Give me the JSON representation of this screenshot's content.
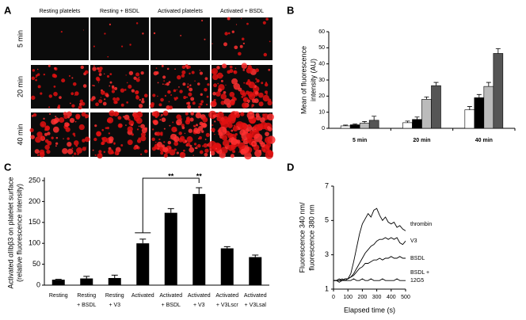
{
  "figure": {
    "panel_letters": [
      "A",
      "B",
      "C",
      "D"
    ],
    "image_grid": {
      "columns": [
        "Resting platelets",
        "Resting + BSDL",
        "Activated platelets",
        "Activated + BSDL"
      ],
      "rows": [
        "5 min",
        "20 min",
        "40 min"
      ]
    }
  },
  "chart_data": [
    {
      "type": "grouped-bar",
      "ylabel": [
        "Mean of fluorescence",
        "intensity (AU)"
      ],
      "categories": [
        "5 min",
        "20 min",
        "40 min"
      ],
      "series": [
        {
          "color": "#ffffff",
          "values": [
            1.5,
            3.5,
            11.5
          ],
          "errors": [
            0.5,
            1,
            2
          ]
        },
        {
          "color": "#000000",
          "values": [
            2.2,
            5.5,
            19
          ],
          "errors": [
            0.5,
            1.5,
            2
          ]
        },
        {
          "color": "#bbbbbb",
          "values": [
            3.2,
            18,
            26
          ],
          "errors": [
            1,
            1.5,
            2.5
          ]
        },
        {
          "color": "#555555",
          "values": [
            5,
            26.5,
            46.5
          ],
          "errors": [
            2.5,
            2,
            3
          ]
        }
      ],
      "ylim": [
        0,
        60
      ],
      "yticks": [
        0,
        10,
        20,
        30,
        40,
        50,
        60
      ]
    },
    {
      "type": "bar",
      "ylabel": [
        "Activated αIIbβ3 on platelet surface",
        "(relative fluorescence intensity)"
      ],
      "categories": [
        [
          "Resting"
        ],
        [
          "Resting",
          "+ BSDL"
        ],
        [
          "Resting",
          "+ V3"
        ],
        [
          "Activated"
        ],
        [
          "Activated",
          "+ BSDL"
        ],
        [
          "Activated",
          "+ V3"
        ],
        [
          "Activated",
          "+ V3Lscr"
        ],
        [
          "Activated",
          "+ V3Lsal"
        ]
      ],
      "values": [
        13,
        16,
        17,
        100,
        173,
        218,
        88,
        67
      ],
      "errors": [
        1,
        5,
        7,
        10,
        10,
        15,
        4,
        5
      ],
      "color": "#000000",
      "annotations": [
        "**",
        "**"
      ],
      "ylim": [
        0,
        250
      ],
      "yticks": [
        0,
        50,
        100,
        150,
        200,
        250
      ]
    },
    {
      "type": "line",
      "ylabel": [
        "Fluorescence 340 nm/",
        "fluorescence 380 nm"
      ],
      "xlabel": "Elapsed time (s)",
      "x": [
        0,
        20,
        40,
        60,
        80,
        100,
        120,
        140,
        160,
        180,
        200,
        220,
        240,
        260,
        280,
        300,
        320,
        340,
        360,
        380,
        400,
        420,
        440,
        460,
        480,
        500
      ],
      "series": [
        {
          "name": [
            "thrombin"
          ],
          "color": "#000000",
          "values": [
            1.5,
            1.5,
            1.6,
            1.5,
            1.6,
            1.6,
            1.9,
            2.6,
            3.4,
            4.2,
            4.8,
            5.1,
            5.4,
            5.2,
            5.6,
            5.7,
            5.3,
            5.0,
            5.2,
            4.9,
            4.8,
            4.9,
            4.6,
            4.7,
            4.5,
            4.4
          ]
        },
        {
          "name": [
            "V3"
          ],
          "color": "#000000",
          "values": [
            1.5,
            1.5,
            1.5,
            1.6,
            1.5,
            1.6,
            1.7,
            1.9,
            2.2,
            2.5,
            2.8,
            3.1,
            3.3,
            3.5,
            3.6,
            3.8,
            3.9,
            3.9,
            4.0,
            3.9,
            4.0,
            3.9,
            4.0,
            3.7,
            3.6,
            3.8
          ]
        },
        {
          "name": [
            "BSDL"
          ],
          "color": "#000000",
          "values": [
            1.5,
            1.5,
            1.5,
            1.5,
            1.6,
            1.6,
            1.7,
            1.8,
            2.0,
            2.2,
            2.3,
            2.5,
            2.5,
            2.6,
            2.7,
            2.7,
            2.8,
            2.7,
            2.8,
            2.8,
            2.9,
            2.8,
            2.8,
            2.9,
            2.8,
            2.8
          ]
        },
        {
          "name": [
            "BSDL +",
            "12G5"
          ],
          "color": "#000000",
          "values": [
            1.5,
            1.5,
            1.4,
            1.5,
            1.5,
            1.5,
            1.5,
            1.6,
            1.5,
            1.5,
            1.6,
            1.5,
            1.5,
            1.6,
            1.5,
            1.5,
            1.5,
            1.6,
            1.5,
            1.5,
            1.5,
            1.5,
            1.6,
            1.5,
            1.5,
            1.5
          ]
        }
      ],
      "xlim": [
        0,
        500
      ],
      "xticks": [
        0,
        100,
        200,
        300,
        400,
        500
      ],
      "ylim": [
        1,
        7
      ],
      "yticks": [
        1,
        3,
        5,
        7
      ]
    }
  ]
}
